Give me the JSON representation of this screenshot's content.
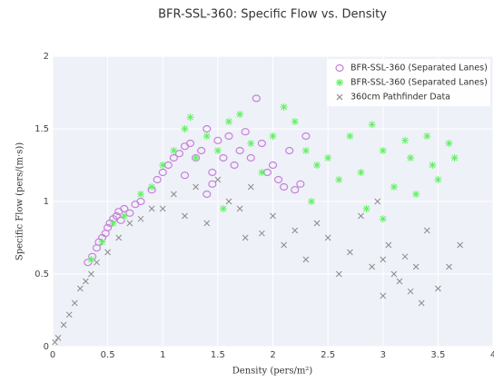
{
  "chart_data": {
    "type": "scatter",
    "title": "BFR-SSL-360: Specific Flow vs. Density",
    "x_label": "Density (pers/m²)",
    "y_label": "Specific Flow (pers/(m·s))",
    "xlim": [
      0,
      4
    ],
    "ylim": [
      0,
      2
    ],
    "xticks": [
      0,
      0.5,
      1,
      1.5,
      2,
      2.5,
      3,
      3.5,
      4
    ],
    "yticks": [
      0,
      0.5,
      1,
      1.5,
      2
    ],
    "grid": true,
    "legend": "top-right",
    "series": [
      {
        "name": "BFR-SSL-360 (Separated Lanes)",
        "color": "#c77fd9",
        "marker": "circle-open",
        "x": [
          0.32,
          0.36,
          0.4,
          0.42,
          0.45,
          0.48,
          0.5,
          0.52,
          0.55,
          0.58,
          0.6,
          0.62,
          0.65,
          0.7,
          0.75,
          0.8,
          0.9,
          0.95,
          1.0,
          1.05,
          1.1,
          1.15,
          1.2,
          1.25,
          1.3,
          1.35,
          1.4,
          1.45,
          1.5,
          1.55,
          1.6,
          1.65,
          1.7,
          1.75,
          1.8,
          1.85,
          1.9,
          1.95,
          2.0,
          2.05,
          2.1,
          2.15,
          2.2,
          2.3,
          1.4,
          1.45,
          1.2,
          2.25
        ],
        "values": [
          0.58,
          0.62,
          0.68,
          0.72,
          0.75,
          0.78,
          0.82,
          0.85,
          0.88,
          0.9,
          0.93,
          0.87,
          0.95,
          0.92,
          0.98,
          1.0,
          1.08,
          1.15,
          1.2,
          1.25,
          1.3,
          1.33,
          1.38,
          1.4,
          1.3,
          1.35,
          1.5,
          1.2,
          1.42,
          1.3,
          1.45,
          1.25,
          1.35,
          1.48,
          1.3,
          1.71,
          1.4,
          1.2,
          1.25,
          1.15,
          1.1,
          1.35,
          1.08,
          1.45,
          1.05,
          1.12,
          1.18,
          1.12
        ]
      },
      {
        "name": "BFR-SSL-360 (Separated Lanes)",
        "color": "#5ef25e",
        "marker": "asterisk",
        "x": [
          0.35,
          0.45,
          0.55,
          0.65,
          0.8,
          0.9,
          1.0,
          1.1,
          1.2,
          1.25,
          1.3,
          1.4,
          1.5,
          1.6,
          1.7,
          1.8,
          1.9,
          2.0,
          2.1,
          2.2,
          2.3,
          2.4,
          2.5,
          2.6,
          2.7,
          2.8,
          2.9,
          3.0,
          3.1,
          3.2,
          3.3,
          3.4,
          3.45,
          3.5,
          3.6,
          3.65,
          2.85,
          3.0,
          2.35,
          1.55,
          3.25
        ],
        "values": [
          0.6,
          0.72,
          0.85,
          0.9,
          1.05,
          1.1,
          1.25,
          1.35,
          1.5,
          1.58,
          1.3,
          1.45,
          1.35,
          1.55,
          1.6,
          1.4,
          1.2,
          1.45,
          1.65,
          1.55,
          1.35,
          1.25,
          1.3,
          1.15,
          1.45,
          1.2,
          1.53,
          1.35,
          1.1,
          1.42,
          1.05,
          1.45,
          1.25,
          1.15,
          1.4,
          1.3,
          0.95,
          0.88,
          1.0,
          0.95,
          1.3
        ]
      },
      {
        "name": "360cm Pathfinder Data",
        "color": "#8a8a8a",
        "marker": "x",
        "x": [
          0.02,
          0.05,
          0.1,
          0.15,
          0.2,
          0.25,
          0.3,
          0.35,
          0.4,
          0.5,
          0.6,
          0.7,
          0.8,
          0.9,
          1.0,
          1.1,
          1.2,
          1.3,
          1.4,
          1.5,
          1.6,
          1.7,
          1.8,
          1.9,
          2.0,
          2.1,
          2.2,
          2.3,
          2.4,
          2.5,
          2.6,
          2.7,
          2.8,
          2.9,
          3.0,
          3.05,
          3.1,
          3.15,
          3.2,
          3.25,
          3.3,
          3.4,
          3.5,
          3.6,
          3.7,
          1.75,
          3.0,
          2.95,
          3.35
        ],
        "values": [
          0.03,
          0.06,
          0.15,
          0.22,
          0.3,
          0.4,
          0.45,
          0.5,
          0.58,
          0.65,
          0.75,
          0.85,
          0.88,
          0.95,
          0.95,
          1.05,
          0.9,
          1.1,
          0.85,
          1.15,
          1.0,
          0.95,
          1.1,
          0.78,
          0.9,
          0.7,
          0.8,
          0.6,
          0.85,
          0.75,
          0.5,
          0.65,
          0.9,
          0.55,
          0.6,
          0.7,
          0.5,
          0.45,
          0.62,
          0.38,
          0.55,
          0.8,
          0.4,
          0.55,
          0.7,
          0.75,
          0.35,
          1.0,
          0.3
        ]
      }
    ]
  }
}
